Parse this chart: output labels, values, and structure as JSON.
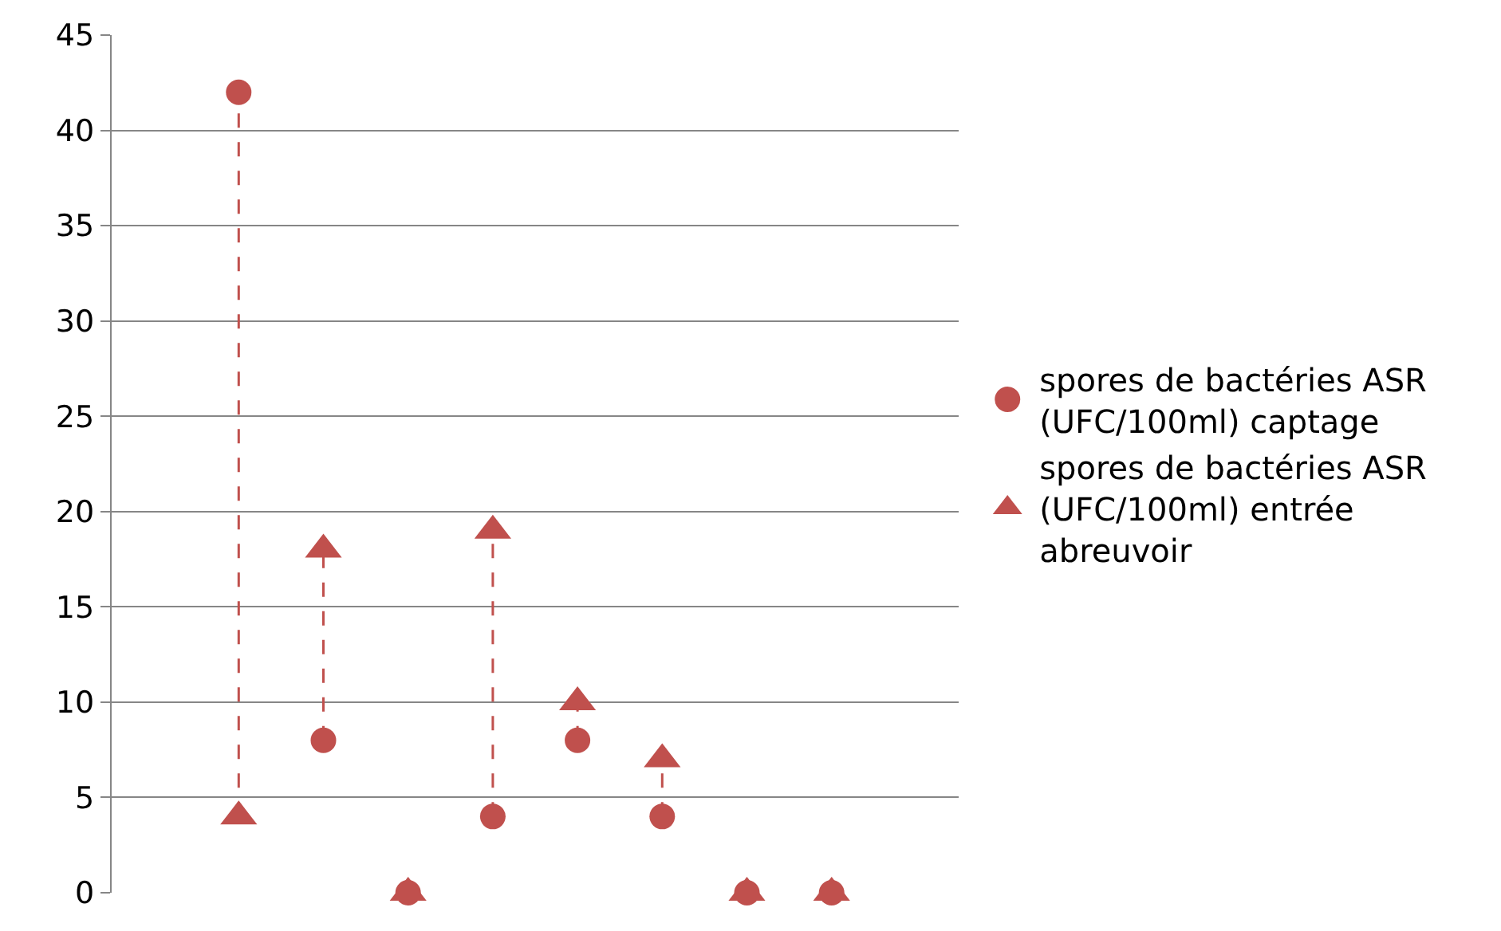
{
  "chart_data": {
    "type": "scatter",
    "categories": [
      null,
      null,
      null,
      null,
      null,
      null,
      null,
      null,
      null,
      null
    ],
    "ylim": [
      0,
      45
    ],
    "yticks": [
      0,
      5,
      10,
      15,
      20,
      25,
      30,
      35,
      40,
      45
    ],
    "grid": "y",
    "legend": "right",
    "tick_labels": "y",
    "series": [
      {
        "name": "spores de bactéries ASR (UFC/100ml) captage",
        "color": "#c0504d",
        "marker": "circle",
        "values": [
          null,
          42,
          8,
          0,
          4,
          8,
          4,
          0,
          0,
          null
        ]
      },
      {
        "name": "spores de bactéries ASR (UFC/100ml) entrée abreuvoir",
        "color": "#c0504d",
        "marker": "triangle",
        "values": [
          null,
          4,
          18,
          0,
          19,
          10,
          7,
          0,
          0,
          null
        ]
      }
    ]
  }
}
